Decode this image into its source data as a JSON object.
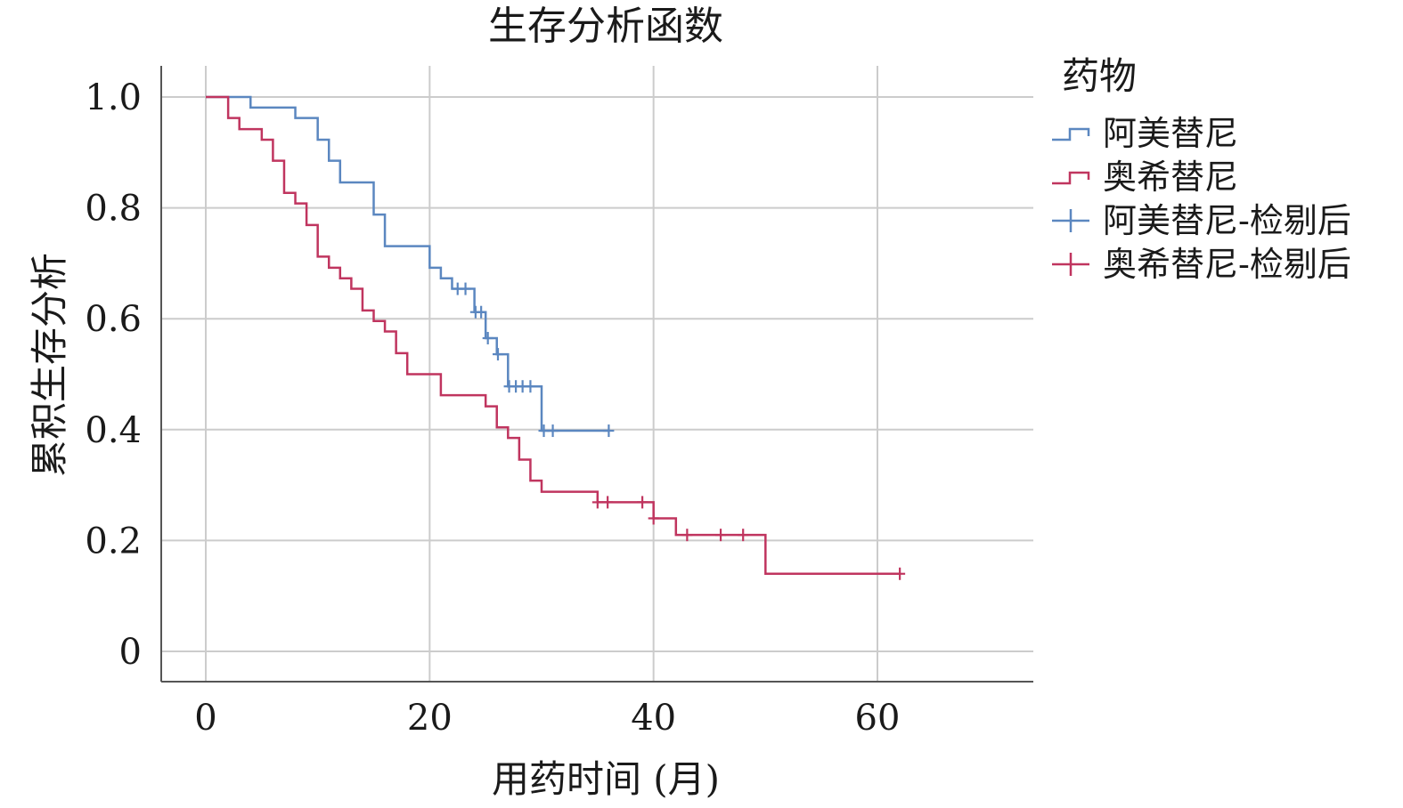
{
  "chart_data": {
    "type": "line",
    "title": "生存分析函数",
    "xlabel": "用药时间 (月)",
    "ylabel": "累积生存分析",
    "xlim": [
      -4,
      73
    ],
    "ylim": [
      -0.055,
      1.07
    ],
    "x_ticks": [
      0,
      20,
      40,
      60
    ],
    "x_tick_labels": [
      "0",
      "20",
      "40",
      "60"
    ],
    "y_ticks": [
      0,
      0.2,
      0.4,
      0.6,
      0.8,
      1.0
    ],
    "y_tick_labels": [
      "0",
      "0.2",
      "0.4",
      "0.6",
      "0.8",
      "1.0"
    ],
    "grid": true,
    "step": true,
    "legend": {
      "title": "药物",
      "position": "right",
      "entries": [
        {
          "label": "阿美替尼",
          "kind": "line",
          "series": 0
        },
        {
          "label": "奥希替尼",
          "kind": "line",
          "series": 1
        },
        {
          "label": "阿美替尼-检剔后",
          "kind": "censor",
          "series": 0
        },
        {
          "label": "奥希替尼-检剔后",
          "kind": "censor",
          "series": 1
        }
      ]
    },
    "series": [
      {
        "name": "阿美替尼",
        "color": "#5b87c0",
        "steps": [
          [
            0,
            1.0
          ],
          [
            4,
            0.981
          ],
          [
            8,
            0.962
          ],
          [
            10,
            0.923
          ],
          [
            11,
            0.885
          ],
          [
            12,
            0.846
          ],
          [
            15,
            0.788
          ],
          [
            16,
            0.731
          ],
          [
            20,
            0.692
          ],
          [
            21,
            0.673
          ],
          [
            22,
            0.654
          ],
          [
            24,
            0.612
          ],
          [
            25,
            0.565
          ],
          [
            26,
            0.536
          ],
          [
            27,
            0.478
          ],
          [
            30,
            0.398
          ]
        ],
        "end_x": 36,
        "censored": [
          [
            22.5,
            0.654
          ],
          [
            23.2,
            0.654
          ],
          [
            24.1,
            0.612
          ],
          [
            24.6,
            0.612
          ],
          [
            25.2,
            0.565
          ],
          [
            26.1,
            0.536
          ],
          [
            27.1,
            0.478
          ],
          [
            27.7,
            0.478
          ],
          [
            28.3,
            0.478
          ],
          [
            29.0,
            0.478
          ],
          [
            30.2,
            0.398
          ],
          [
            31.0,
            0.398
          ],
          [
            36.0,
            0.398
          ]
        ]
      },
      {
        "name": "奥希替尼",
        "color": "#c0355f",
        "steps": [
          [
            0,
            1.0
          ],
          [
            2,
            0.962
          ],
          [
            3,
            0.942
          ],
          [
            5,
            0.923
          ],
          [
            6,
            0.885
          ],
          [
            7,
            0.827
          ],
          [
            8,
            0.808
          ],
          [
            9,
            0.769
          ],
          [
            10,
            0.712
          ],
          [
            11,
            0.692
          ],
          [
            12,
            0.673
          ],
          [
            13,
            0.654
          ],
          [
            14,
            0.615
          ],
          [
            15,
            0.596
          ],
          [
            16,
            0.577
          ],
          [
            17,
            0.538
          ],
          [
            18,
            0.5
          ],
          [
            21,
            0.462
          ],
          [
            25,
            0.442
          ],
          [
            26,
            0.404
          ],
          [
            27,
            0.385
          ],
          [
            28,
            0.346
          ],
          [
            29,
            0.308
          ],
          [
            30,
            0.288
          ],
          [
            35,
            0.269
          ],
          [
            40,
            0.24
          ],
          [
            42,
            0.21
          ],
          [
            50,
            0.14
          ]
        ],
        "end_x": 62,
        "censored": [
          [
            35.0,
            0.269
          ],
          [
            35.9,
            0.269
          ],
          [
            39.0,
            0.269
          ],
          [
            40.0,
            0.24
          ],
          [
            43.0,
            0.21
          ],
          [
            46.0,
            0.21
          ],
          [
            48.0,
            0.21
          ],
          [
            62.0,
            0.14
          ]
        ]
      }
    ]
  }
}
